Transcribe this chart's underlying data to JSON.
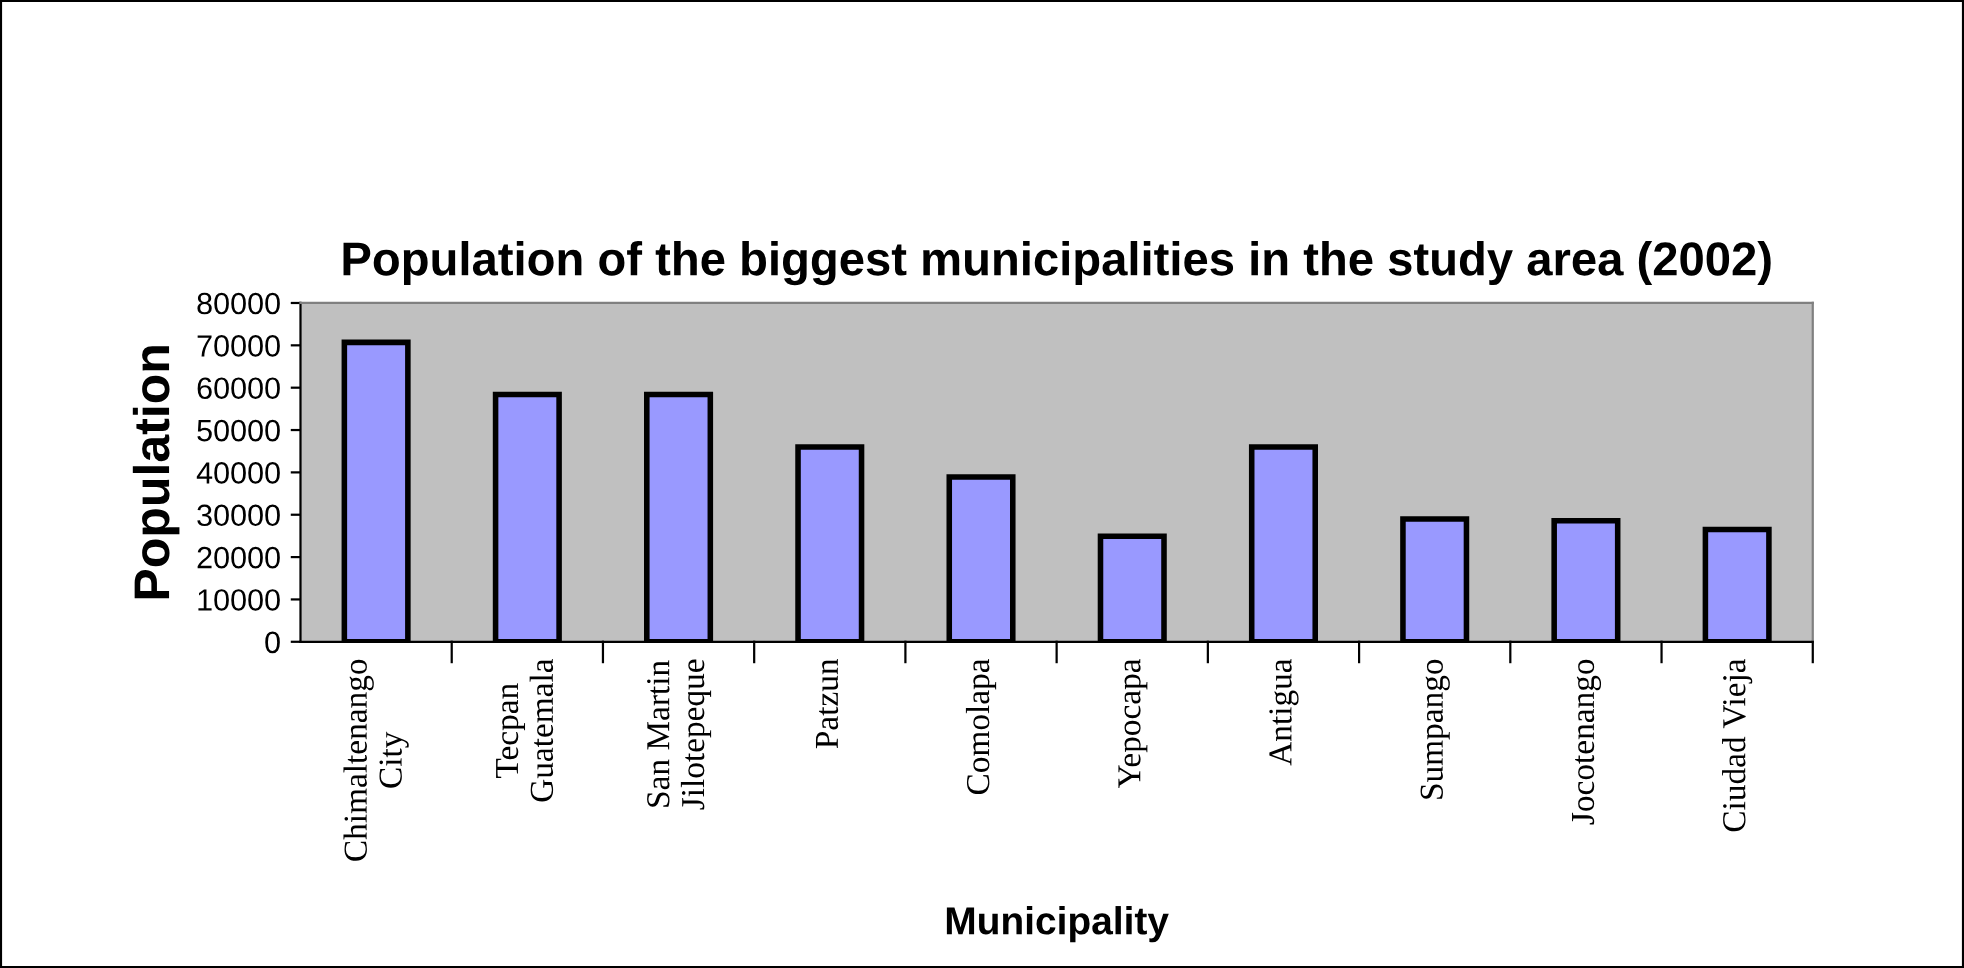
{
  "chart_data": {
    "type": "bar",
    "title": "Population of the biggest municipalities in the study area (2002)",
    "xlabel": "Municipality",
    "ylabel": "Population",
    "categories": [
      "Chimaltenango\nCity",
      "Tecpan\nGuatemala",
      "San Martin\nJilotepeque",
      "Patzun",
      "Comolapa",
      "Yepocapa",
      "Antigua",
      "Sumpango",
      "Jocotenango",
      "Ciudad Vieja"
    ],
    "values": [
      70700,
      58400,
      58400,
      46000,
      38900,
      24900,
      46000,
      29000,
      28600,
      26500
    ],
    "color": "#9999ff",
    "ylim": [
      0,
      80000
    ],
    "yticks": [
      0,
      10000,
      20000,
      30000,
      40000,
      50000,
      60000,
      70000,
      80000
    ],
    "grid": false,
    "legend": false
  }
}
